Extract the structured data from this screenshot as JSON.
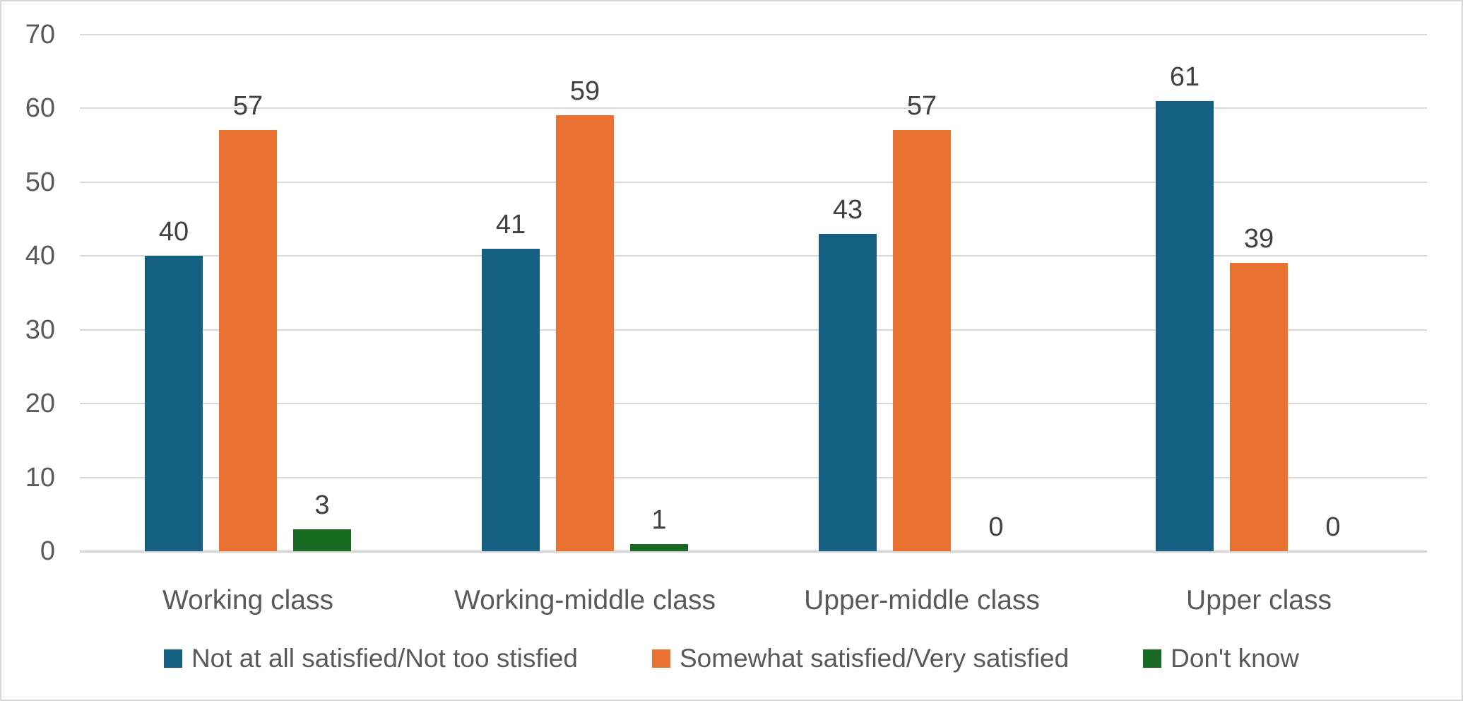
{
  "chart_data": {
    "type": "bar",
    "title": "",
    "xlabel": "",
    "ylabel": "",
    "categories": [
      "Working class",
      "Working-middle class",
      "Upper-middle class",
      "Upper class"
    ],
    "series": [
      {
        "name": "Not at all satisfied/Not too stisfied",
        "color": "#156082",
        "values": [
          40,
          41,
          43,
          61
        ]
      },
      {
        "name": "Somewhat satisfied/Very satisfied",
        "color": "#E97132",
        "values": [
          57,
          59,
          57,
          39
        ]
      },
      {
        "name": "Don't know",
        "color": "#196B24",
        "values": [
          3,
          1,
          0,
          0
        ]
      }
    ],
    "ylim": [
      0,
      70
    ],
    "ytick_step": 10,
    "ytick_labels": [
      "0",
      "10",
      "20",
      "30",
      "40",
      "50",
      "60",
      "70"
    ],
    "grid": true,
    "legend_position": "bottom",
    "data_labels": true
  },
  "colors": {
    "gridline": "#d9d9d9",
    "axis_line": "#d2d2d2",
    "tick_text": "#595959",
    "category_text": "#595959",
    "data_label_text": "#404040",
    "legend_text": "#595959",
    "frame_border": "#d5d5d5",
    "background": "#ffffff"
  }
}
